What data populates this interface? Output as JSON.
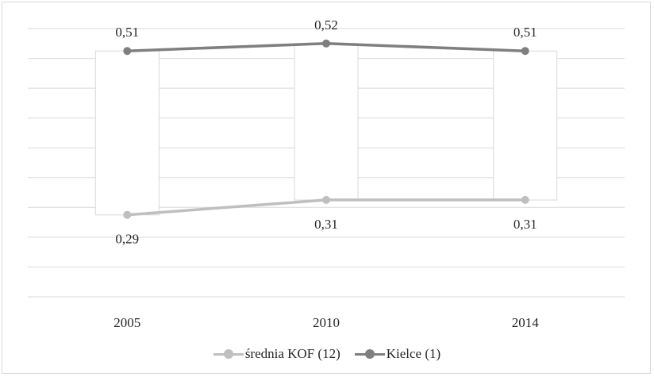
{
  "chart_data": {
    "type": "line",
    "categories": [
      "2005",
      "2010",
      "2014"
    ],
    "series": [
      {
        "name": "średnia KOF (12)",
        "values": [
          0.29,
          0.31,
          0.31
        ],
        "color": "#bfbfbf",
        "labels": [
          "0,29",
          "0,31",
          "0,31"
        ]
      },
      {
        "name": "Kielce (1)",
        "values": [
          0.51,
          0.52,
          0.51
        ],
        "color": "#7f7f7f",
        "labels": [
          "0,51",
          "0,52",
          "0,51"
        ]
      }
    ],
    "ylim": [
      0.18,
      0.54
    ],
    "grid": true,
    "legend_position": "bottom",
    "title": "",
    "xlabel": "",
    "ylabel": ""
  }
}
